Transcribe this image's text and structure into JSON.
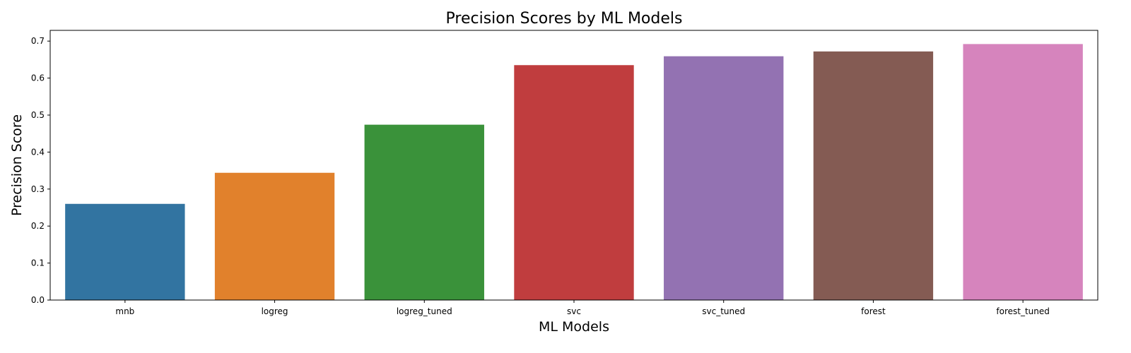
{
  "chart_data": {
    "type": "bar",
    "title": "Precision Scores by ML Models",
    "xlabel": "ML Models",
    "ylabel": "Precision Score",
    "categories": [
      "mnb",
      "logreg",
      "logreg_tuned",
      "svc",
      "svc_tuned",
      "forest",
      "forest_tuned"
    ],
    "values": [
      0.26,
      0.344,
      0.474,
      0.635,
      0.659,
      0.672,
      0.692
    ],
    "colors": [
      "#3274a1",
      "#e1812c",
      "#3a923a",
      "#c03d3e",
      "#9372b2",
      "#845b53",
      "#d684bd"
    ],
    "ylim": [
      0,
      0.729
    ],
    "yticks": [
      "0.0",
      "0.1",
      "0.2",
      "0.3",
      "0.4",
      "0.5",
      "0.6",
      "0.7"
    ],
    "grid": false,
    "legend": "none"
  }
}
